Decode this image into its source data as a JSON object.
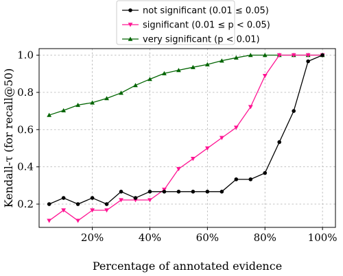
{
  "chart_data": {
    "type": "line",
    "xlabel": "Percentage of annotated evidence",
    "ylabel": "Kendall-τ (for recall@50)",
    "xlim": [
      1.5,
      104.5
    ],
    "ylim": [
      0.075,
      1.035
    ],
    "x_ticks": [
      20,
      40,
      60,
      80,
      100
    ],
    "x_tick_labels": [
      "20%",
      "40%",
      "60%",
      "80%",
      "100%"
    ],
    "y_ticks": [
      0.2,
      0.4,
      0.6,
      0.8,
      1.0
    ],
    "y_tick_labels": [
      "0.2",
      "0.4",
      "0.6",
      "0.8",
      "1.0"
    ],
    "grid": true,
    "legend_position": "top-center, above plot",
    "x": [
      5,
      10,
      15,
      20,
      25,
      30,
      35,
      40,
      45,
      50,
      55,
      60,
      65,
      70,
      75,
      80,
      85,
      90,
      95,
      100
    ],
    "series": [
      {
        "name": "not significant (0.01 ≤ 0.05)",
        "color": "#000000",
        "marker": "circle",
        "values": [
          0.2,
          0.233,
          0.2,
          0.233,
          0.2,
          0.267,
          0.233,
          0.267,
          0.267,
          0.267,
          0.267,
          0.267,
          0.267,
          0.333,
          0.333,
          0.367,
          0.533,
          0.7,
          0.967,
          1.0
        ]
      },
      {
        "name": "significant (0.01 ≤ p < 0.05)",
        "color": "#ff1493",
        "marker": "triangle-down",
        "values": [
          0.111,
          0.167,
          0.111,
          0.167,
          0.167,
          0.222,
          0.222,
          0.222,
          0.278,
          0.389,
          0.444,
          0.5,
          0.556,
          0.611,
          0.722,
          0.889,
          1.0,
          1.0,
          1.0,
          1.0
        ]
      },
      {
        "name": "very significant (p < 0.01)",
        "color": "#006400",
        "marker": "triangle-up",
        "values": [
          0.678,
          0.703,
          0.732,
          0.745,
          0.768,
          0.797,
          0.838,
          0.871,
          0.902,
          0.919,
          0.935,
          0.95,
          0.97,
          0.986,
          1.0,
          1.0,
          1.0,
          1.0,
          1.0,
          1.0
        ]
      }
    ]
  }
}
